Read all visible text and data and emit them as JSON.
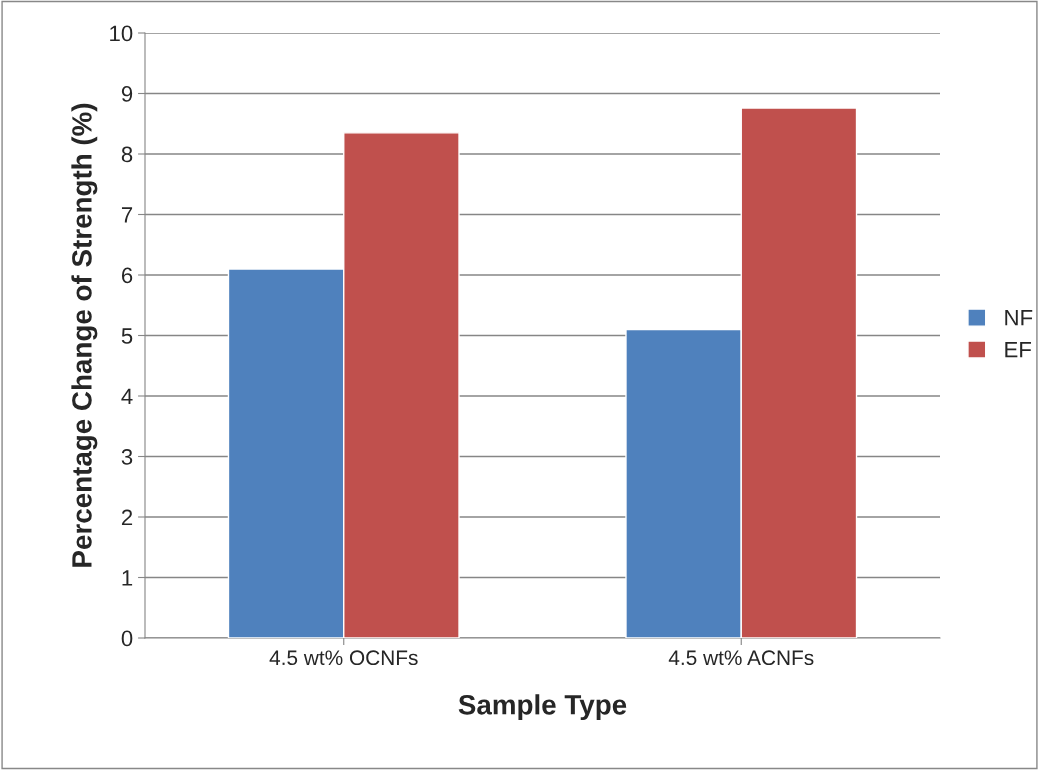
{
  "chart_data": {
    "type": "bar",
    "xlabel": "Sample Type",
    "ylabel": "Percentage Change of Strength (%)",
    "categories": [
      "4.5 wt% OCNFs",
      "4.5 wt% ACNFs"
    ],
    "series": [
      {
        "name": "NF",
        "color": "#4f81bd",
        "values": [
          6.1,
          5.1
        ]
      },
      {
        "name": "EF",
        "color": "#c0504d",
        "values": [
          8.35,
          8.76
        ]
      }
    ],
    "ylim": [
      0,
      10
    ],
    "yticks": [
      0,
      1,
      2,
      3,
      4,
      5,
      6,
      7,
      8,
      9,
      10
    ],
    "grid": "y",
    "legend": "right"
  }
}
